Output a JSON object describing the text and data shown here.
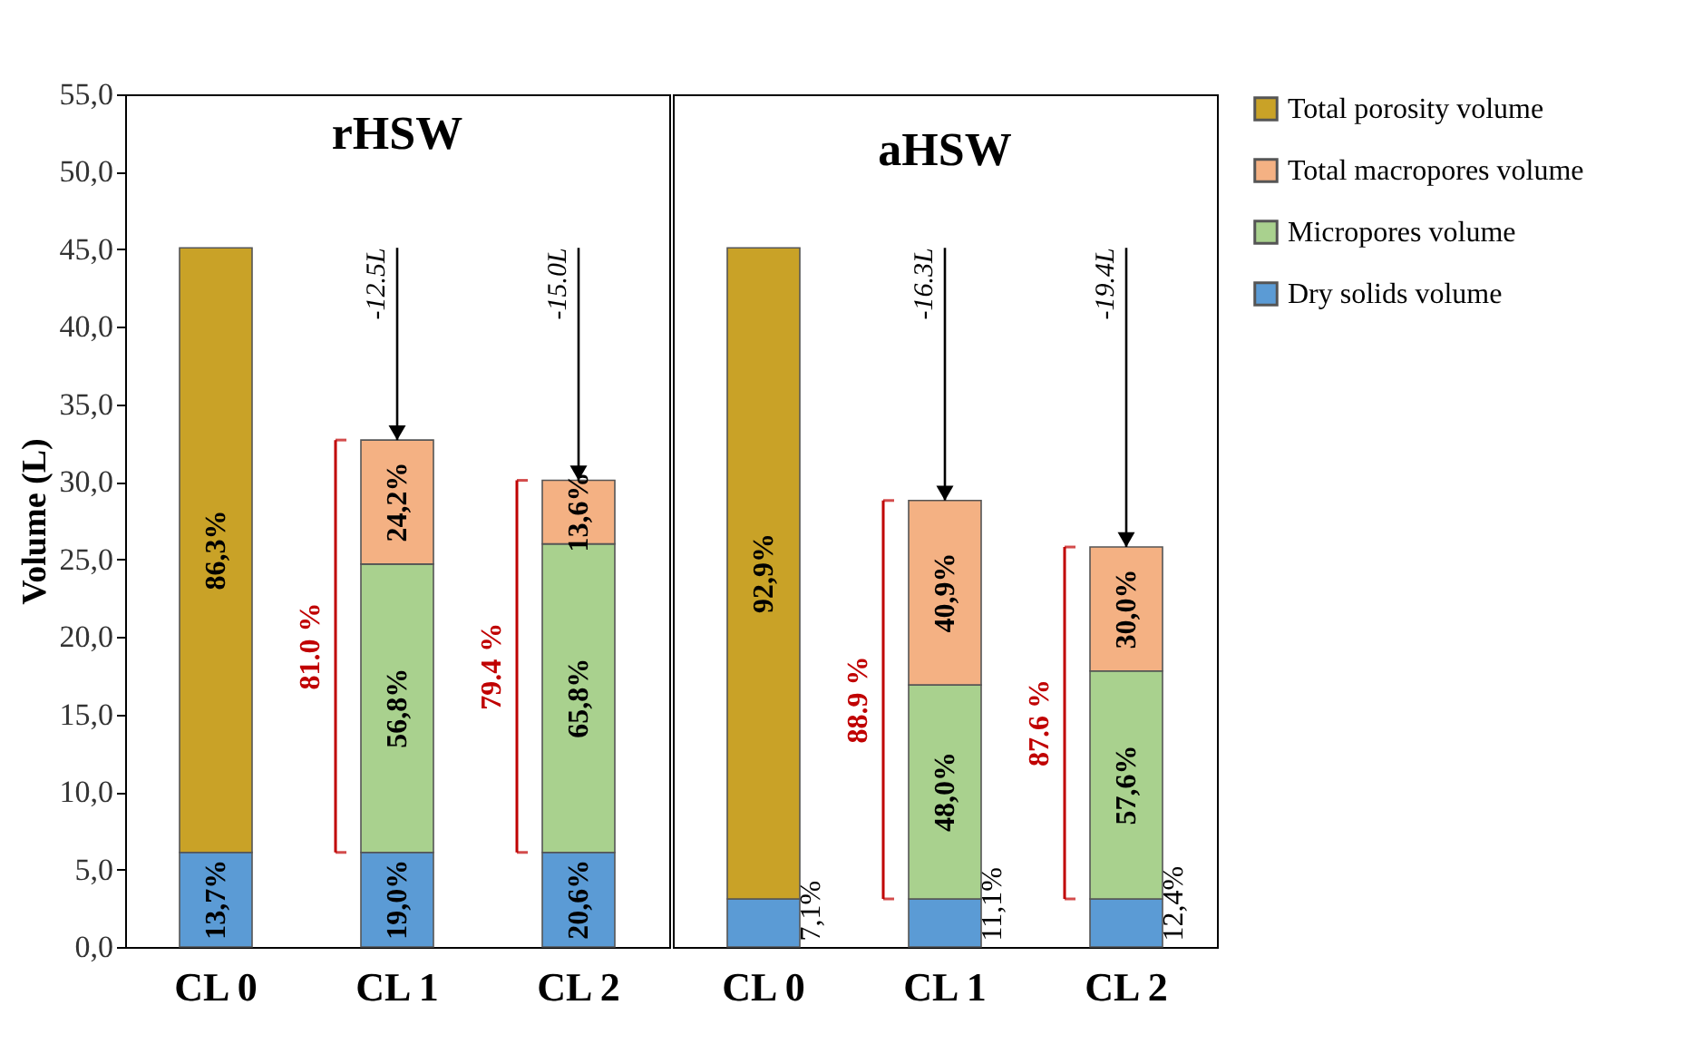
{
  "chart_data": [
    {
      "type": "bar",
      "title": "rHSW",
      "ylabel": "Volume (L)",
      "categories": [
        "CL 0",
        "CL 1",
        "CL 2"
      ],
      "stacked": true,
      "legend": "right",
      "series": [
        {
          "name": "Dry solids volume",
          "color": "#5b9bd5",
          "values": [
            6.1,
            6.1,
            6.1
          ]
        },
        {
          "name": "Micropores volume",
          "color": "#a9d18e",
          "values": [
            null,
            18.6,
            19.9
          ]
        },
        {
          "name": "Total macropores volume",
          "color": "#f4b183",
          "values": [
            null,
            8.0,
            4.1
          ]
        },
        {
          "name": "Total porosity volume",
          "color": "#c9a227",
          "values": [
            39.0,
            null,
            null
          ]
        }
      ],
      "ylim": [
        0,
        55
      ],
      "yticks": [
        {
          "value": 0,
          "label": "0,0"
        },
        {
          "value": 5,
          "label": "5,0"
        },
        {
          "value": 10,
          "label": "10,0"
        },
        {
          "value": 15,
          "label": "15,0"
        },
        {
          "value": 20,
          "label": "20,0"
        },
        {
          "value": 25,
          "label": "25,0"
        },
        {
          "value": 30,
          "label": "30,0"
        },
        {
          "value": 35,
          "label": "35,0"
        },
        {
          "value": 40,
          "label": "40,0"
        },
        {
          "value": 45,
          "label": "45,0"
        },
        {
          "value": 50,
          "label": "50,0"
        },
        {
          "value": 55,
          "label": "55,0"
        }
      ],
      "annotations": [
        "13,7%",
        "86,3%",
        "19,0%",
        "56,8%",
        "24,2%",
        "20,6%",
        "65,8%",
        "13,6%",
        {
          "text": "-12.5L",
          "x": "CL 1",
          "y": 32.7
        },
        "81.0 %",
        {
          "text": "-15.0L",
          "x": "CL 2",
          "y": 30.1
        },
        "79.4 %"
      ]
    },
    {
      "type": "bar",
      "title": "aHSW",
      "categories": [
        "CL 0",
        "CL 1",
        "CL 2"
      ],
      "stacked": true,
      "tick_labels": "x",
      "series": [
        {
          "color": "#5b9bd5",
          "values": [
            3.1,
            3.1,
            3.1
          ]
        },
        {
          "color": "#a9d18e",
          "values": [
            null,
            13.8,
            14.7
          ]
        },
        {
          "color": "#f4b183",
          "values": [
            null,
            11.9,
            8.0
          ]
        },
        {
          "color": "#c9a227",
          "values": [
            42.0,
            null,
            null
          ]
        }
      ],
      "ylim": [
        0,
        55
      ],
      "annotations": [
        "7,1%",
        "92,9%",
        "11,1%",
        "48,0%",
        "40,9%",
        "12,4%",
        "57,6%",
        "30,0%",
        {
          "text": "-16.3L",
          "x": "CL 1",
          "y": 28.8
        },
        "88.9 %",
        {
          "text": "-19.4L",
          "x": "CL 2",
          "y": 25.8
        },
        "87.6 %"
      ]
    }
  ]
}
